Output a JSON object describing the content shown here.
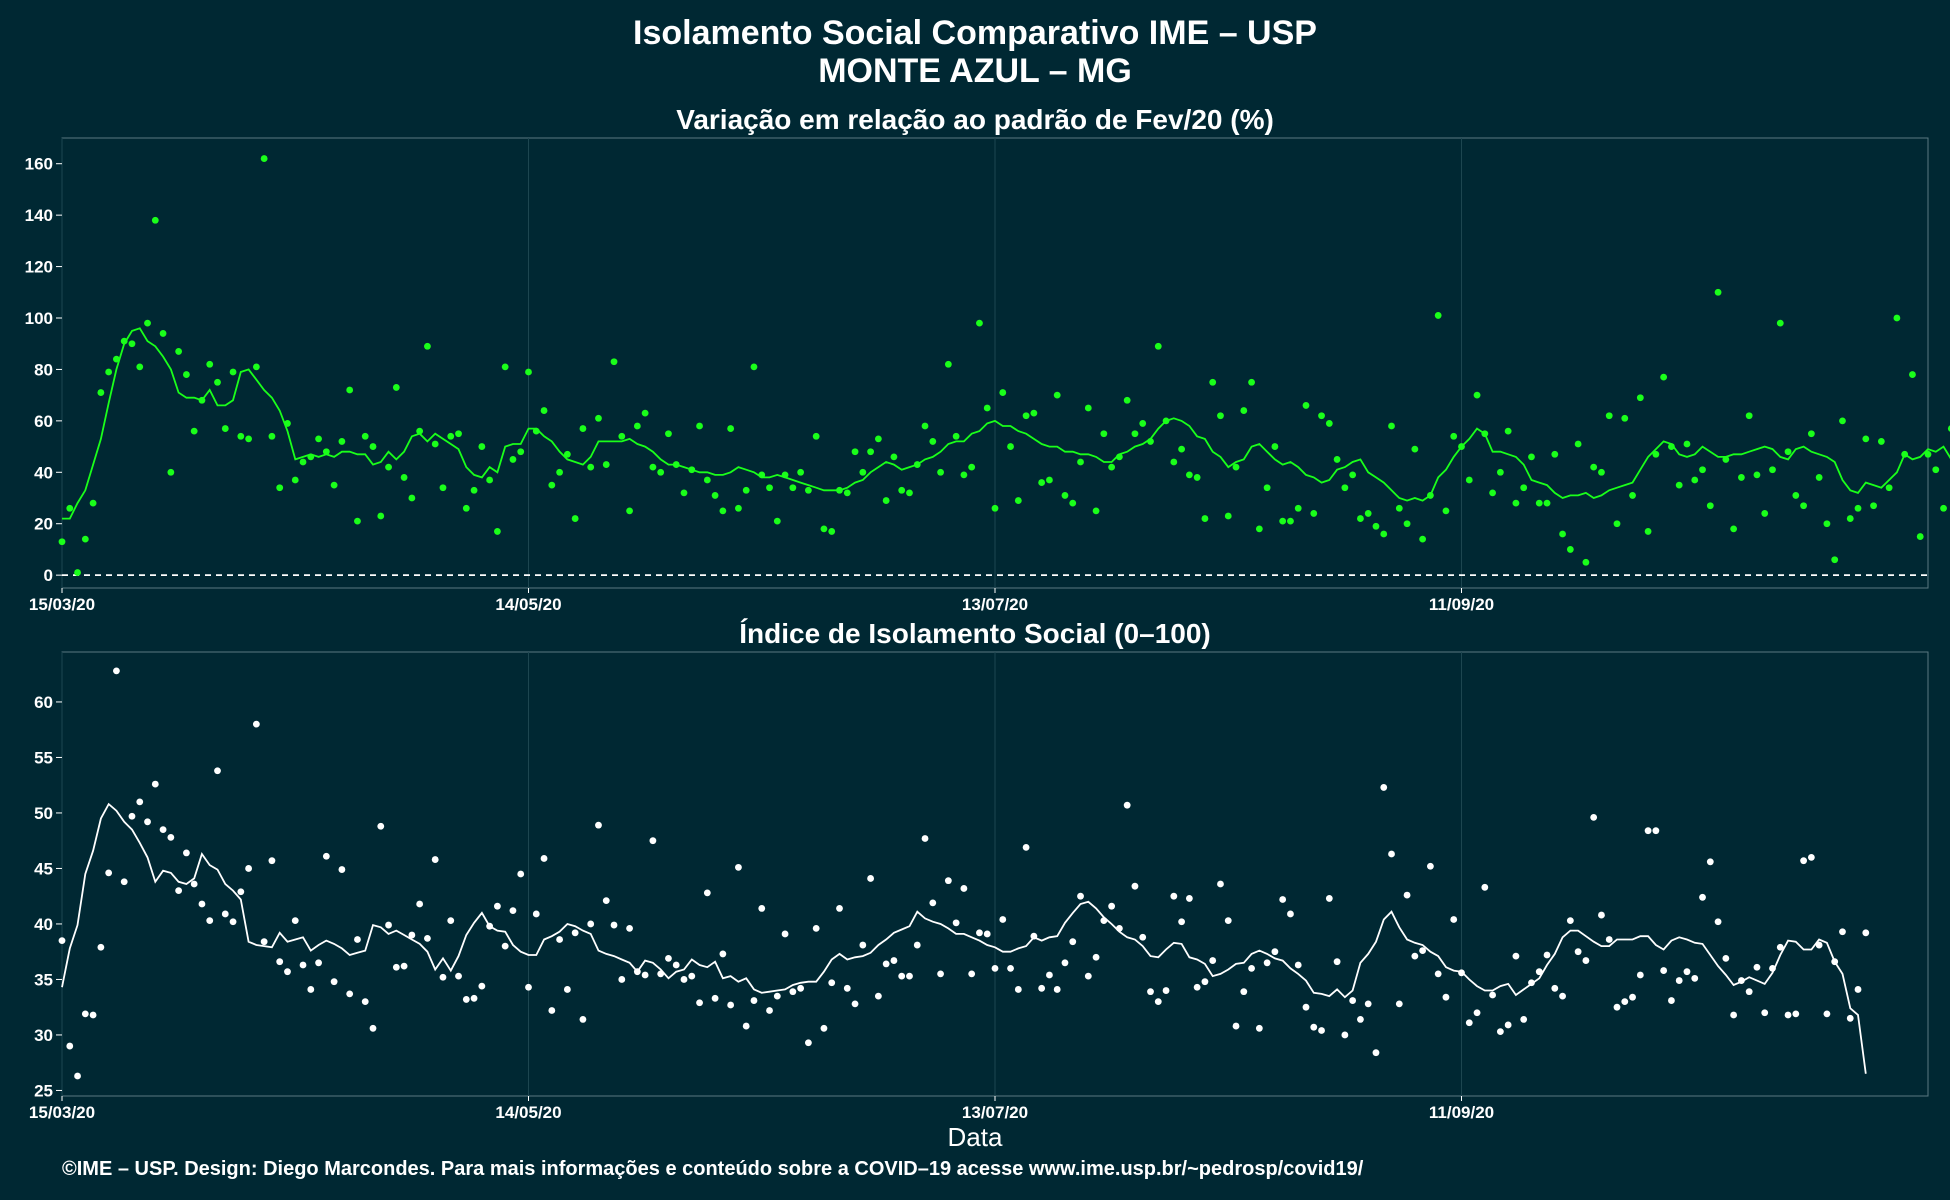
{
  "header": {
    "title_line1": "Isolamento Social Comparativo IME – USP",
    "title_line2": "MONTE AZUL – MG"
  },
  "footer": {
    "xaxis_label": "Data",
    "caption": "©IME – USP. Design: Diego Marcondes. Para mais informações e conteúdo sobre a COVID–19 acesse www.ime.usp.br/~pedrosp/covid19/"
  },
  "colors": {
    "background": "#002833",
    "panel_background": "#002833",
    "grid": "#1d4650",
    "text": "#ffffff",
    "series_variation": "#1aff1a",
    "series_index": "#ffffff",
    "reference_line": "#ffffff"
  },
  "chart_data": [
    {
      "type": "scatter",
      "title": "Variação em relação ao padrão de Fev/20 (%)",
      "xlabel": "",
      "ylabel": "",
      "x_start_date": "15/03/20",
      "x_tick_labels": [
        "15/03/20",
        "14/05/20",
        "13/07/20",
        "11/09/20"
      ],
      "x_tick_days": [
        0,
        60,
        120,
        180
      ],
      "xlim_days": [
        0,
        240
      ],
      "ylim": [
        -5,
        170
      ],
      "y_ticks": [
        0,
        20,
        40,
        60,
        80,
        100,
        120,
        140,
        160
      ],
      "reference_line_y": 0,
      "grid": true,
      "points_y": [
        13,
        26,
        1,
        14,
        28,
        71,
        79,
        84,
        91,
        90,
        81,
        98,
        138,
        94,
        40,
        87,
        78,
        56,
        68,
        82,
        75,
        57,
        79,
        54,
        53,
        81,
        162,
        54,
        34,
        59,
        37,
        44,
        46,
        53,
        48,
        35,
        52,
        72,
        21,
        54,
        50,
        23,
        42,
        73,
        38,
        30,
        56,
        89,
        51,
        34,
        54,
        55,
        26,
        33,
        50,
        37,
        17,
        81,
        45,
        48,
        79,
        56,
        64,
        35,
        40,
        47,
        22,
        57,
        42,
        61,
        43,
        83,
        54,
        25,
        58,
        63,
        42,
        40,
        55,
        43,
        32,
        41,
        58,
        37,
        31,
        25,
        57,
        26,
        33,
        81,
        39,
        34,
        21,
        39,
        34,
        40,
        33,
        54,
        18,
        17,
        33,
        32,
        48,
        40,
        48,
        53,
        29,
        46,
        33,
        32,
        43,
        58,
        52,
        40,
        82,
        54,
        39,
        42,
        98,
        65,
        26,
        71,
        50,
        29,
        62,
        63,
        36,
        37,
        70,
        31,
        28,
        44,
        65,
        25,
        55,
        42,
        46,
        68,
        55,
        59,
        52,
        89,
        60,
        44,
        49,
        39,
        38,
        22,
        75,
        62,
        23,
        42,
        64,
        75,
        18,
        34,
        50,
        21,
        21,
        26,
        66,
        24,
        62,
        59,
        45,
        34,
        39,
        22,
        24,
        19,
        16,
        58,
        26,
        20,
        49,
        14,
        31,
        101,
        25,
        54,
        50,
        37,
        70,
        55,
        32,
        40,
        56,
        28,
        34,
        46,
        28,
        28,
        47,
        16,
        10,
        51,
        5,
        42,
        40,
        62,
        20,
        61,
        31,
        69,
        17,
        47,
        77,
        50,
        35,
        51,
        37,
        41,
        27,
        110,
        45,
        18,
        38,
        62,
        39,
        24,
        41,
        98,
        48,
        31,
        27,
        55,
        38,
        20,
        6,
        60,
        22,
        26,
        53,
        27,
        52,
        34,
        100,
        47,
        78,
        15,
        47,
        41,
        26,
        57
      ],
      "rolling_mean": [
        22,
        22,
        28,
        33,
        43,
        53,
        67,
        80,
        90,
        95,
        96,
        91,
        89,
        85,
        80,
        71,
        69,
        69,
        68,
        72,
        66,
        66,
        68,
        79,
        80,
        76,
        72,
        69,
        64,
        56,
        45,
        46,
        47,
        46,
        47,
        46,
        48,
        48,
        47,
        47,
        43,
        44,
        48,
        45,
        48,
        54,
        55,
        52,
        55,
        53,
        51,
        49,
        42,
        39,
        38,
        42,
        40,
        50,
        51,
        51,
        57,
        57,
        54,
        52,
        48,
        45,
        44,
        43,
        46,
        52,
        52,
        52,
        52,
        53,
        51,
        50,
        48,
        45,
        43,
        43,
        42,
        41,
        40,
        40,
        39,
        39,
        40,
        42,
        41,
        40,
        38,
        38,
        39,
        38,
        37,
        36,
        35,
        34,
        33,
        33,
        33,
        34,
        36,
        37,
        40,
        42,
        44,
        43,
        41,
        42,
        43,
        45,
        46,
        48,
        51,
        52,
        52,
        55,
        56,
        59,
        60,
        58,
        58,
        56,
        55,
        53,
        51,
        50,
        50,
        48,
        48,
        47,
        47,
        46,
        44,
        44,
        47,
        48,
        50,
        51,
        53,
        57,
        60,
        61,
        60,
        58,
        54,
        53,
        48,
        46,
        42,
        44,
        45,
        50,
        51,
        48,
        45,
        43,
        44,
        42,
        39,
        38,
        36,
        37,
        41,
        42,
        44,
        45,
        40,
        38,
        36,
        33,
        30,
        29,
        30,
        29,
        31,
        38,
        41,
        46,
        50,
        53,
        57,
        55,
        48,
        48,
        47,
        46,
        43,
        37,
        36,
        35,
        32,
        30,
        31,
        31,
        32,
        30,
        31,
        33,
        34,
        35,
        36,
        41,
        46,
        49,
        52,
        51,
        47,
        46,
        47,
        50,
        48,
        46,
        46,
        47,
        47,
        48,
        49,
        50,
        49,
        46,
        45,
        49,
        50,
        48,
        47,
        46,
        44,
        37,
        33,
        32,
        36,
        35,
        34,
        37,
        40,
        47,
        45,
        46,
        49,
        48,
        50,
        45
      ]
    },
    {
      "type": "scatter",
      "title": "Índice de Isolamento Social (0–100)",
      "xlabel": "Data",
      "ylabel": "",
      "x_start_date": "15/03/20",
      "x_tick_labels": [
        "15/03/20",
        "14/05/20",
        "13/07/20",
        "11/09/20"
      ],
      "x_tick_days": [
        0,
        60,
        120,
        180
      ],
      "xlim_days": [
        0,
        240
      ],
      "ylim": [
        24.5,
        64.5
      ],
      "y_ticks": [
        25,
        30,
        35,
        40,
        45,
        50,
        55,
        60
      ],
      "grid": true,
      "points_y": [
        38.5,
        29,
        26.3,
        31.9,
        31.8,
        37.9,
        44.6,
        62.8,
        43.8,
        49.7,
        51,
        49.2,
        52.6,
        48.5,
        47.8,
        43,
        46.4,
        43.6,
        41.8,
        40.3,
        53.8,
        40.9,
        40.2,
        42.9,
        45,
        58,
        38.4,
        45.7,
        36.6,
        35.7,
        40.3,
        36.3,
        34.1,
        36.5,
        46.1,
        34.8,
        44.9,
        33.7,
        38.6,
        33,
        30.6,
        48.8,
        39.9,
        36.1,
        36.2,
        39,
        41.8,
        38.7,
        45.8,
        35.2,
        40.3,
        35.3,
        33.2,
        33.3,
        34.4,
        39.8,
        41.6,
        38,
        41.2,
        44.5,
        34.3,
        40.9,
        45.9,
        32.2,
        38.6,
        34.1,
        39.2,
        31.4,
        40,
        48.9,
        42.1,
        39.9,
        35,
        39.6,
        35.7,
        35.4,
        47.5,
        35.5,
        36.9,
        36.3,
        35,
        35.3,
        32.9,
        42.8,
        33.3,
        37.3,
        32.7,
        45.1,
        30.8,
        33.1,
        41.4,
        32.2,
        33.5,
        39.1,
        33.9,
        34.2,
        29.3,
        39.6,
        30.6,
        34.7,
        41.4,
        34.2,
        32.8,
        38.1,
        44.1,
        33.5,
        36.4,
        36.7,
        35.3,
        35.3,
        38.1,
        47.7,
        41.9,
        35.5,
        43.9,
        40.1,
        43.2,
        35.5,
        39.2,
        39.1,
        36,
        40.4,
        36,
        34.1,
        46.9,
        38.9,
        34.2,
        35.4,
        34.1,
        36.5,
        38.4,
        42.5,
        35.3,
        37,
        40.3,
        41.6,
        39.6,
        50.7,
        43.4,
        38.8,
        33.9,
        33,
        34,
        42.5,
        40.2,
        42.3,
        34.3,
        34.8,
        36.7,
        43.6,
        40.3,
        30.8,
        33.9,
        36,
        30.6,
        36.5,
        37.5,
        42.2,
        40.9,
        36.3,
        32.5,
        30.7,
        30.4,
        42.3,
        36.6,
        30,
        33.1,
        31.4,
        32.8,
        28.4,
        52.3,
        46.3,
        32.8,
        42.6,
        37.1,
        37.6,
        45.2,
        35.5,
        33.4,
        40.4,
        35.6,
        31.1,
        32,
        43.3,
        33.6,
        30.3,
        30.9,
        37.1,
        31.4,
        34.7,
        35.7,
        37.2,
        34.2,
        33.5,
        40.3,
        37.5,
        36.7,
        49.6,
        40.8,
        38.6,
        32.5,
        33,
        33.4,
        35.4,
        48.4,
        48.4,
        35.8,
        33.1,
        34.9,
        35.7,
        35.1,
        42.4,
        45.6,
        40.2,
        36.9,
        31.8,
        34.9,
        33.9,
        36.1,
        32,
        36,
        37.9,
        31.8,
        31.9,
        45.7,
        46,
        38.1,
        31.9,
        36.6,
        39.3,
        31.5,
        34.1,
        39.2
      ],
      "rolling_mean": [
        34.3,
        37.8,
        39.9,
        44.5,
        46.6,
        49.5,
        50.8,
        50.2,
        49.2,
        48.5,
        47.3,
        46,
        43.8,
        44.8,
        44.6,
        43.8,
        43.6,
        44.1,
        46.3,
        45.3,
        44.9,
        43.6,
        43,
        42.2,
        38.4,
        38.1,
        38,
        37.9,
        39.2,
        38.4,
        38.6,
        38.8,
        37.6,
        38.1,
        38.5,
        38.2,
        37.8,
        37.2,
        37.4,
        37.6,
        39.9,
        39.7,
        39.1,
        39.4,
        39,
        38.6,
        38.2,
        37.5,
        35.9,
        36.9,
        35.8,
        37.1,
        39,
        40.1,
        41,
        39.8,
        39.4,
        39.3,
        38.1,
        37.5,
        37.2,
        37.2,
        38.6,
        38.9,
        39.3,
        40,
        39.8,
        39.4,
        39.1,
        37.6,
        37.3,
        37.1,
        36.8,
        36.5,
        35.7,
        36.7,
        36.5,
        35.9,
        35.1,
        35.7,
        35.9,
        36.8,
        36.3,
        36.1,
        36.6,
        35.1,
        35.3,
        34.8,
        35.1,
        34.1,
        33.8,
        33.9,
        34,
        34.1,
        34.5,
        34.7,
        34.8,
        34.8,
        35.7,
        36.8,
        37.3,
        36.8,
        37,
        37.1,
        37.4,
        38.1,
        38.6,
        39.2,
        39.5,
        39.8,
        41.1,
        40.5,
        40.2,
        40,
        39.6,
        39.1,
        39.1,
        38.8,
        38.5,
        38.1,
        37.9,
        37.5,
        37.5,
        37.8,
        38,
        38.8,
        38.5,
        38.8,
        38.9,
        40.1,
        41,
        41.8,
        42,
        41.4,
        40.6,
        40,
        39.3,
        38.8,
        38.6,
        38,
        37.1,
        37,
        37.7,
        38.3,
        38.2,
        37,
        36.8,
        36.4,
        35.3,
        35.5,
        35.9,
        36.4,
        36.5,
        37.3,
        37.6,
        37.3,
        36.9,
        36.7,
        36,
        35.5,
        34.9,
        33.8,
        33.7,
        33.5,
        34.1,
        33.4,
        34,
        36.5,
        37.3,
        38.4,
        40.4,
        41.1,
        39.7,
        38.6,
        38.3,
        38.1,
        37.5,
        37.1,
        36.1,
        35.8,
        35.7,
        35,
        34.4,
        34,
        34,
        34.4,
        34.6,
        33.6,
        34.1,
        34.6,
        35.1,
        36.3,
        37.3,
        38.8,
        39.4,
        39.4,
        38.9,
        38.4,
        38,
        38,
        38.6,
        38.6,
        38.6,
        38.9,
        38.9,
        38.1,
        37.7,
        38.5,
        38.8,
        38.6,
        38.3,
        38.2,
        37.2,
        36.2,
        35.4,
        34.5,
        34.8,
        35.2,
        34.9,
        34.6,
        35.6,
        37.2,
        38.5,
        38.4,
        37.7,
        37.7,
        38.6,
        38.3,
        36.6,
        35.5,
        32.4,
        31.8,
        26.5
      ]
    }
  ]
}
